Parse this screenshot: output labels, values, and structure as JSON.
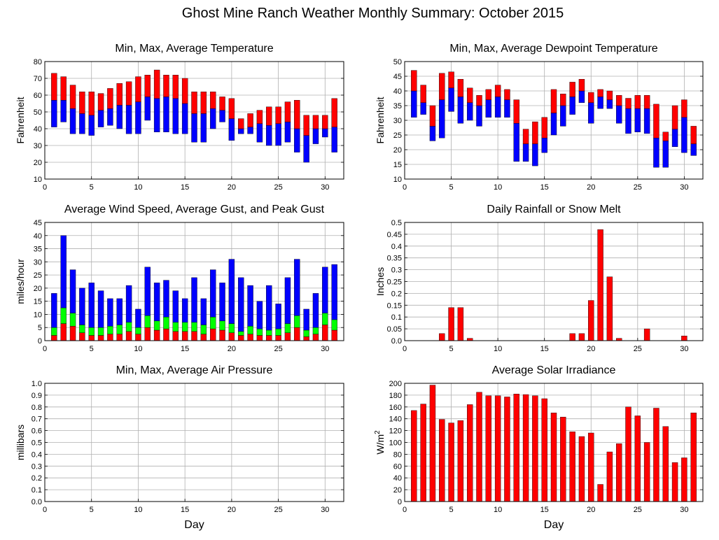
{
  "title": "Ghost Mine Ranch Weather Monthly Summary: October 2015",
  "colors": {
    "red": "#ff0000",
    "blue": "#0000ff",
    "green": "#00ff00",
    "grid": "#b0b0b0",
    "axis": "#000000"
  },
  "chart_data": [
    {
      "type": "bar",
      "title": "Min, Max, Average Temperature",
      "ylabel": "Fahrenheit",
      "xlabel": "",
      "xlim": [
        0,
        32
      ],
      "ylim": [
        10,
        80
      ],
      "xticks": [
        "0",
        "5",
        "10",
        "15",
        "20",
        "25",
        "30"
      ],
      "yticks": [
        "10",
        "20",
        "30",
        "40",
        "50",
        "60",
        "70",
        "80"
      ],
      "days": [
        1,
        2,
        3,
        4,
        5,
        6,
        7,
        8,
        9,
        10,
        11,
        12,
        13,
        14,
        15,
        16,
        17,
        18,
        19,
        20,
        21,
        22,
        23,
        24,
        25,
        26,
        27,
        28,
        29,
        30,
        31
      ],
      "series": [
        {
          "name": "Min",
          "values": [
            41,
            44,
            37,
            37,
            36,
            41,
            42,
            40,
            37,
            37,
            45,
            38,
            38,
            37,
            37,
            32,
            32,
            40,
            44,
            33,
            37,
            37,
            32,
            30,
            30,
            32,
            26,
            20,
            31,
            35,
            26
          ]
        },
        {
          "name": "Average",
          "values": [
            57,
            57,
            52,
            49,
            48,
            51,
            52,
            54,
            54,
            56,
            59,
            58,
            59,
            58,
            55,
            49,
            49,
            52,
            51,
            46,
            40,
            41,
            43,
            42,
            43,
            44,
            40,
            36,
            40,
            40,
            41
          ]
        },
        {
          "name": "Max",
          "values": [
            73,
            71,
            66,
            62,
            62,
            61,
            64,
            67,
            68,
            71,
            72,
            75,
            72,
            72,
            70,
            62,
            62,
            62,
            59,
            58,
            46,
            49,
            51,
            53,
            53,
            56,
            57,
            48,
            48,
            48,
            58
          ]
        }
      ]
    },
    {
      "type": "bar",
      "title": "Min, Max, Average Dewpoint Temperature",
      "ylabel": "Fahrenheit",
      "xlabel": "",
      "xlim": [
        0,
        32
      ],
      "ylim": [
        10,
        50
      ],
      "xticks": [
        "0",
        "5",
        "10",
        "15",
        "20",
        "25",
        "30"
      ],
      "yticks": [
        "10",
        "15",
        "20",
        "25",
        "30",
        "35",
        "40",
        "45",
        "50"
      ],
      "days": [
        1,
        2,
        3,
        4,
        5,
        6,
        7,
        8,
        9,
        10,
        11,
        12,
        13,
        14,
        15,
        16,
        17,
        18,
        19,
        20,
        21,
        22,
        23,
        24,
        25,
        26,
        27,
        28,
        29,
        30,
        31
      ],
      "series": [
        {
          "name": "Min",
          "values": [
            31,
            32,
            23,
            24,
            33,
            29,
            30,
            28,
            31,
            31,
            31,
            16,
            16,
            14.5,
            19,
            25,
            28,
            32,
            36,
            29,
            34,
            34,
            29,
            25.5,
            26,
            25.5,
            14,
            14,
            21,
            19,
            18
          ]
        },
        {
          "name": "Average",
          "values": [
            40,
            36,
            28,
            37,
            41,
            38,
            36,
            35,
            37,
            38,
            37,
            29,
            22,
            22,
            24,
            32.5,
            35,
            38,
            40,
            36,
            38,
            37,
            35,
            34,
            34,
            34,
            24,
            23,
            27,
            31,
            22
          ]
        },
        {
          "name": "Max",
          "values": [
            47,
            42,
            35,
            46,
            46.5,
            44,
            41,
            38.5,
            40.5,
            42,
            40.5,
            37,
            27,
            29.5,
            31,
            40.5,
            39,
            43,
            44,
            39.5,
            40.5,
            40,
            38.5,
            37.5,
            38.5,
            38.5,
            35.5,
            26,
            35,
            37,
            28
          ]
        }
      ]
    },
    {
      "type": "bar",
      "title": "Average Wind Speed, Average Gust, and Peak Gust",
      "ylabel": "miles/hour",
      "xlabel": "",
      "xlim": [
        0,
        32
      ],
      "ylim": [
        0,
        45
      ],
      "xticks": [
        "0",
        "5",
        "10",
        "15",
        "20",
        "25",
        "30"
      ],
      "yticks": [
        "0",
        "5",
        "10",
        "15",
        "20",
        "25",
        "30",
        "35",
        "40",
        "45"
      ],
      "days": [
        1,
        2,
        3,
        4,
        5,
        6,
        7,
        8,
        9,
        10,
        11,
        12,
        13,
        14,
        15,
        16,
        17,
        18,
        19,
        20,
        21,
        22,
        23,
        24,
        25,
        26,
        27,
        28,
        29,
        30,
        31
      ],
      "series": [
        {
          "name": "Average Wind Speed",
          "values": [
            2,
            6.5,
            5.5,
            3,
            2,
            2,
            2.5,
            2.5,
            3.5,
            2.5,
            5,
            4,
            4.5,
            3.5,
            3.5,
            3.5,
            2.5,
            4.5,
            4,
            3,
            2,
            2.5,
            2,
            2,
            2,
            3,
            5,
            1.5,
            2.5,
            6,
            4
          ]
        },
        {
          "name": "Average Gust",
          "values": [
            5,
            12.5,
            10.5,
            6,
            5,
            5,
            5.5,
            6,
            7,
            5,
            9.5,
            7.5,
            9,
            7,
            7,
            7,
            6,
            9,
            7.5,
            6.5,
            3.5,
            5.5,
            4.5,
            4,
            4.5,
            6.5,
            9.5,
            4,
            5,
            10.5,
            8
          ]
        },
        {
          "name": "Peak Gust",
          "values": [
            18,
            40,
            27,
            20,
            22,
            19,
            16,
            16,
            21,
            12,
            28,
            22,
            23,
            19,
            16,
            24,
            16,
            27,
            22,
            31,
            24,
            21,
            15,
            21,
            14,
            24,
            31,
            12,
            18,
            28,
            29
          ]
        }
      ]
    },
    {
      "type": "bar",
      "title": "Daily Rainfall or Snow Melt",
      "ylabel": "Inches",
      "xlabel": "",
      "xlim": [
        0,
        32
      ],
      "ylim": [
        0,
        0.5
      ],
      "xticks": [
        "0",
        "5",
        "10",
        "15",
        "20",
        "25",
        "30"
      ],
      "yticks": [
        "0.0",
        "0.05",
        "0.1",
        "0.15",
        "0.2",
        "0.25",
        "0.3",
        "0.35",
        "0.4",
        "0.45",
        "0.5"
      ],
      "days": [
        1,
        2,
        3,
        4,
        5,
        6,
        7,
        8,
        9,
        10,
        11,
        12,
        13,
        14,
        15,
        16,
        17,
        18,
        19,
        20,
        21,
        22,
        23,
        24,
        25,
        26,
        27,
        28,
        29,
        30,
        31
      ],
      "series": [
        {
          "name": "Rainfall",
          "values": [
            0,
            0,
            0,
            0.03,
            0.14,
            0.14,
            0.01,
            0,
            0,
            0,
            0,
            0,
            0,
            0,
            0,
            0,
            0,
            0.03,
            0.03,
            0.17,
            0.47,
            0.27,
            0.01,
            0,
            0,
            0.05,
            0,
            0,
            0,
            0.02,
            0
          ]
        }
      ]
    },
    {
      "type": "bar",
      "title": "Min, Max, Average Air Pressure",
      "ylabel": "millibars",
      "xlabel": "Day",
      "xlim": [
        0,
        32
      ],
      "ylim": [
        0,
        1
      ],
      "xticks": [
        "0",
        "5",
        "10",
        "15",
        "20",
        "25",
        "30"
      ],
      "yticks": [
        "0.0",
        "0.1",
        "0.2",
        "0.3",
        "0.4",
        "0.5",
        "0.6",
        "0.7",
        "0.8",
        "0.9",
        "1.0"
      ],
      "days": [],
      "series": []
    },
    {
      "type": "bar",
      "title": "Average Solar Irradiance",
      "ylabel": "W/m",
      "ylabel_sup": "2",
      "xlabel": "Day",
      "xlim": [
        0,
        32
      ],
      "ylim": [
        0,
        200
      ],
      "xticks": [
        "0",
        "5",
        "10",
        "15",
        "20",
        "25",
        "30"
      ],
      "yticks": [
        "0",
        "20",
        "40",
        "60",
        "80",
        "100",
        "120",
        "140",
        "160",
        "180",
        "200"
      ],
      "days": [
        1,
        2,
        3,
        4,
        5,
        6,
        7,
        8,
        9,
        10,
        11,
        12,
        13,
        14,
        15,
        16,
        17,
        18,
        19,
        20,
        21,
        22,
        23,
        24,
        25,
        26,
        27,
        28,
        29,
        30,
        31
      ],
      "series": [
        {
          "name": "Solar Irradiance",
          "values": [
            154,
            165,
            197,
            139,
            133,
            137,
            164,
            185,
            179,
            179,
            177,
            182,
            181,
            179,
            174,
            150,
            143,
            118,
            110,
            116,
            29,
            84,
            98,
            160,
            145,
            100,
            158,
            127,
            66,
            74,
            150
          ]
        }
      ]
    }
  ]
}
